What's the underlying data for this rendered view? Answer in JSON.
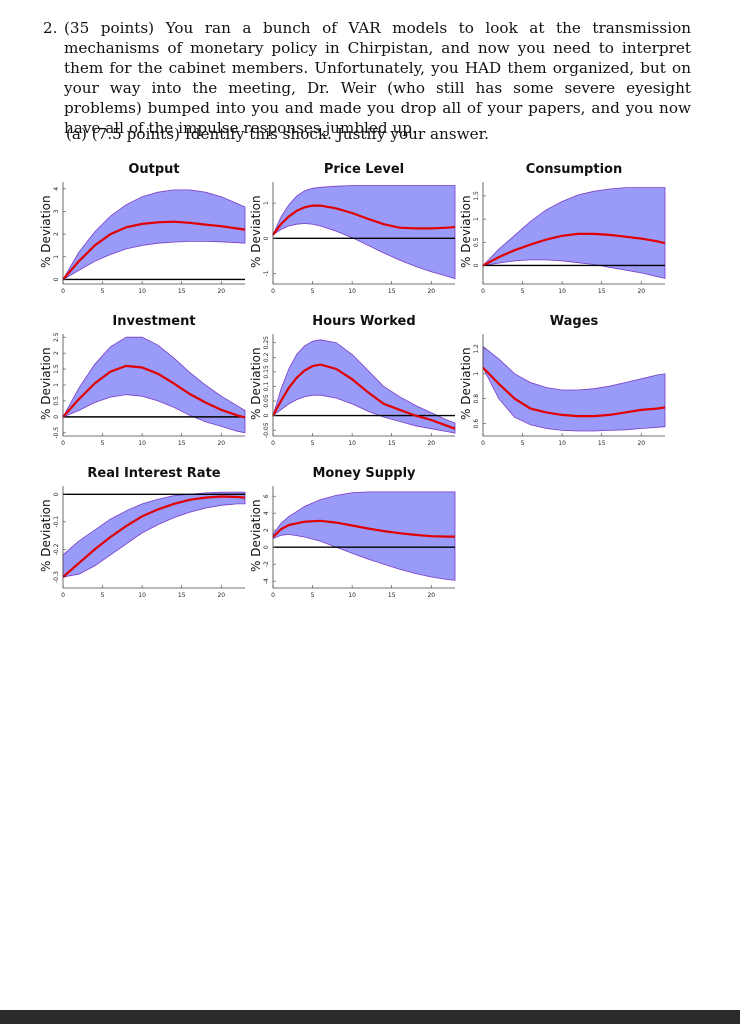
{
  "question": {
    "number": "2.",
    "text": "(35 points) You ran a bunch of VAR models to look at the transmission mechanisms of monetary policy in Chirpistan, and now you need to interpret them for the cabinet members. Unfortunately, you HAD them organized, but on your way into the meeting, Dr. Weir (who still has some severe eyesight problems) bumped into you and made you drop all of your papers, and you now have all of the impulse responses jumbled up.",
    "part_a": "(a) (7.5 points) Identify this shock. Justify your answer."
  },
  "colors": {
    "band": "#9a9af8",
    "band_edge": "#7a3cc8",
    "line": "#e00000",
    "axis": "#000000"
  },
  "chart_data": [
    {
      "type": "line",
      "title": "Output",
      "ylabel": "% Deviation",
      "xlim": [
        0,
        23
      ],
      "ylim": [
        -0.2,
        4.3
      ],
      "yticks": [
        0,
        1,
        2,
        3,
        4
      ],
      "xticks": [
        0,
        5,
        10,
        15,
        20
      ],
      "zero_line": true,
      "x": [
        0,
        2,
        4,
        6,
        8,
        10,
        12,
        14,
        16,
        18,
        20,
        22,
        23
      ],
      "mean": [
        0,
        0.8,
        1.5,
        2.0,
        2.3,
        2.45,
        2.52,
        2.55,
        2.5,
        2.42,
        2.35,
        2.25,
        2.2
      ],
      "lower": [
        0,
        0.4,
        0.8,
        1.1,
        1.35,
        1.5,
        1.6,
        1.65,
        1.68,
        1.68,
        1.66,
        1.62,
        1.6
      ],
      "upper": [
        0,
        1.2,
        2.1,
        2.8,
        3.3,
        3.65,
        3.85,
        3.95,
        3.95,
        3.85,
        3.65,
        3.35,
        3.2
      ]
    },
    {
      "type": "line",
      "title": "Price Level",
      "ylabel": "% Deviation",
      "xlim": [
        0,
        23
      ],
      "ylim": [
        -1.3,
        1.6
      ],
      "yticks": [
        -1,
        0,
        1
      ],
      "xticks": [
        0,
        5,
        10,
        15,
        20
      ],
      "zero_line": true,
      "x": [
        0,
        1,
        2,
        3,
        4,
        5,
        6,
        8,
        10,
        12,
        14,
        16,
        18,
        20,
        22,
        23
      ],
      "mean": [
        0.1,
        0.4,
        0.62,
        0.78,
        0.88,
        0.93,
        0.93,
        0.85,
        0.72,
        0.55,
        0.4,
        0.3,
        0.28,
        0.28,
        0.3,
        0.32
      ],
      "lower": [
        0.1,
        0.25,
        0.35,
        0.4,
        0.42,
        0.4,
        0.35,
        0.2,
        0.02,
        -0.2,
        -0.42,
        -0.62,
        -0.8,
        -0.95,
        -1.08,
        -1.15
      ],
      "upper": [
        0.1,
        0.6,
        0.95,
        1.2,
        1.35,
        1.42,
        1.45,
        1.48,
        1.5,
        1.5,
        1.5,
        1.5,
        1.5,
        1.5,
        1.5,
        1.5
      ]
    },
    {
      "type": "line",
      "title": "Consumption",
      "ylabel": "% Deviation",
      "xlim": [
        0,
        23
      ],
      "ylim": [
        -0.4,
        1.8
      ],
      "yticks": [
        0,
        0.5,
        1,
        1.5
      ],
      "xticks": [
        0,
        5,
        10,
        15,
        20
      ],
      "zero_line": true,
      "x": [
        0,
        2,
        4,
        6,
        8,
        10,
        12,
        14,
        16,
        18,
        20,
        22,
        23
      ],
      "mean": [
        0,
        0.18,
        0.33,
        0.45,
        0.56,
        0.64,
        0.68,
        0.68,
        0.66,
        0.62,
        0.58,
        0.52,
        0.48
      ],
      "lower": [
        0,
        0.05,
        0.1,
        0.12,
        0.12,
        0.1,
        0.06,
        0.02,
        -0.04,
        -0.1,
        -0.16,
        -0.24,
        -0.28
      ],
      "upper": [
        0,
        0.35,
        0.65,
        0.95,
        1.2,
        1.38,
        1.52,
        1.6,
        1.65,
        1.68,
        1.68,
        1.68,
        1.68
      ]
    },
    {
      "type": "line",
      "title": "Investment",
      "ylabel": "% Deviation",
      "xlim": [
        0,
        23
      ],
      "ylim": [
        -0.6,
        2.6
      ],
      "yticks": [
        -0.5,
        0,
        0.5,
        1,
        1.5,
        2,
        2.5
      ],
      "xticks": [
        0,
        5,
        10,
        15,
        20
      ],
      "zero_line": true,
      "x": [
        0,
        2,
        4,
        6,
        8,
        10,
        12,
        14,
        16,
        18,
        20,
        22,
        23
      ],
      "mean": [
        0,
        0.55,
        1.05,
        1.42,
        1.6,
        1.55,
        1.35,
        1.05,
        0.72,
        0.45,
        0.22,
        0.05,
        -0.02
      ],
      "lower": [
        0,
        0.2,
        0.45,
        0.62,
        0.7,
        0.65,
        0.5,
        0.3,
        0.05,
        -0.15,
        -0.3,
        -0.45,
        -0.5
      ],
      "upper": [
        0,
        0.9,
        1.65,
        2.2,
        2.5,
        2.5,
        2.25,
        1.85,
        1.4,
        1.0,
        0.65,
        0.35,
        0.2
      ]
    },
    {
      "type": "line",
      "title": "Hours Worked",
      "ylabel": "% Deviation",
      "xlim": [
        0,
        23
      ],
      "ylim": [
        -0.07,
        0.28
      ],
      "yticks": [
        -0.05,
        0,
        0.05,
        0.1,
        0.15,
        0.2,
        0.25
      ],
      "xticks": [
        0,
        5,
        10,
        15,
        20
      ],
      "zero_line": true,
      "x": [
        0,
        1,
        2,
        3,
        4,
        5,
        6,
        8,
        10,
        12,
        14,
        16,
        18,
        20,
        22,
        23
      ],
      "mean": [
        0,
        0.05,
        0.095,
        0.13,
        0.155,
        0.17,
        0.175,
        0.16,
        0.125,
        0.08,
        0.04,
        0.02,
        0.0,
        -0.015,
        -0.035,
        -0.045
      ],
      "lower": [
        0,
        0.02,
        0.04,
        0.055,
        0.065,
        0.07,
        0.07,
        0.06,
        0.04,
        0.015,
        -0.005,
        -0.02,
        -0.035,
        -0.045,
        -0.055,
        -0.06
      ],
      "upper": [
        0,
        0.09,
        0.16,
        0.21,
        0.24,
        0.255,
        0.26,
        0.25,
        0.21,
        0.155,
        0.1,
        0.065,
        0.035,
        0.01,
        -0.015,
        -0.025
      ]
    },
    {
      "type": "line",
      "title": "Wages",
      "ylabel": "% Deviation",
      "xlim": [
        0,
        23
      ],
      "ylim": [
        0.5,
        1.32
      ],
      "yticks": [
        0.6,
        0.8,
        1.0,
        1.2
      ],
      "xticks": [
        0,
        5,
        10,
        15,
        20
      ],
      "zero_line": false,
      "x": [
        0,
        2,
        4,
        6,
        8,
        10,
        12,
        14,
        16,
        18,
        20,
        22,
        23
      ],
      "mean": [
        1.05,
        0.92,
        0.8,
        0.72,
        0.69,
        0.67,
        0.66,
        0.66,
        0.67,
        0.69,
        0.71,
        0.72,
        0.73
      ],
      "lower": [
        1.05,
        0.8,
        0.65,
        0.59,
        0.56,
        0.545,
        0.54,
        0.54,
        0.545,
        0.55,
        0.56,
        0.57,
        0.575
      ],
      "upper": [
        1.22,
        1.12,
        1.0,
        0.93,
        0.89,
        0.87,
        0.87,
        0.88,
        0.9,
        0.93,
        0.96,
        0.99,
        1.0
      ]
    },
    {
      "type": "line",
      "title": "Real Interest Rate",
      "ylabel": "% Deviation",
      "xlim": [
        0,
        23
      ],
      "ylim": [
        -0.34,
        0.03
      ],
      "yticks": [
        -0.3,
        -0.2,
        -0.1,
        0.0
      ],
      "xticks": [
        0,
        5,
        10,
        15,
        20
      ],
      "zero_line": true,
      "x": [
        0,
        2,
        4,
        6,
        8,
        10,
        12,
        14,
        16,
        18,
        20,
        22,
        23
      ],
      "mean": [
        -0.3,
        -0.25,
        -0.2,
        -0.155,
        -0.115,
        -0.08,
        -0.055,
        -0.035,
        -0.02,
        -0.012,
        -0.008,
        -0.01,
        -0.012
      ],
      "lower": [
        -0.3,
        -0.29,
        -0.26,
        -0.22,
        -0.18,
        -0.14,
        -0.11,
        -0.085,
        -0.065,
        -0.05,
        -0.04,
        -0.035,
        -0.035
      ],
      "upper": [
        -0.22,
        -0.17,
        -0.13,
        -0.09,
        -0.06,
        -0.035,
        -0.018,
        -0.005,
        0.0,
        0.005,
        0.008,
        0.008,
        0.008
      ]
    },
    {
      "type": "line",
      "title": "Money Supply",
      "ylabel": "% Deviation",
      "xlim": [
        0,
        23
      ],
      "ylim": [
        -4.8,
        7.2
      ],
      "yticks": [
        -4,
        -2,
        0,
        2,
        4,
        6
      ],
      "xticks": [
        0,
        5,
        10,
        15,
        20
      ],
      "zero_line": true,
      "x": [
        0,
        1,
        2,
        4,
        6,
        8,
        10,
        12,
        14,
        16,
        18,
        20,
        22,
        23
      ],
      "mean": [
        1.2,
        2.1,
        2.6,
        3.0,
        3.1,
        2.9,
        2.55,
        2.2,
        1.9,
        1.65,
        1.45,
        1.3,
        1.25,
        1.25
      ],
      "lower": [
        1.0,
        1.4,
        1.5,
        1.2,
        0.7,
        0.0,
        -0.7,
        -1.4,
        -2.0,
        -2.6,
        -3.1,
        -3.5,
        -3.8,
        -3.9
      ],
      "upper": [
        1.5,
        2.8,
        3.6,
        4.8,
        5.6,
        6.1,
        6.4,
        6.5,
        6.5,
        6.5,
        6.5,
        6.5,
        6.5,
        6.5
      ]
    }
  ]
}
